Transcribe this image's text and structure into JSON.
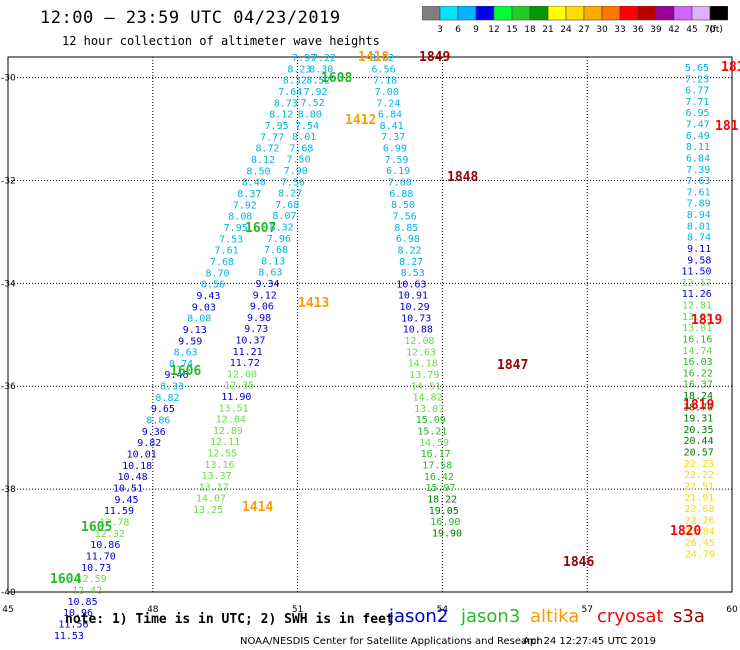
{
  "title": "12:00 – 23:59 UTC 04/23/2019",
  "subtitle": "12 hour collection of altimeter wave heights",
  "colorbar": {
    "labels": [
      "3",
      "6",
      "9",
      "12",
      "15",
      "18",
      "21",
      "24",
      "27",
      "30",
      "33",
      "36",
      "39",
      "42",
      "45",
      "70",
      "(ft)"
    ],
    "colors": [
      "#808080",
      "#00e5ff",
      "#00b4ff",
      "#0000ff",
      "#00ff33",
      "#22cc22",
      "#009900",
      "#ffff00",
      "#ffdd00",
      "#ffaa00",
      "#ff7700",
      "#ff0000",
      "#bb0000",
      "#990099",
      "#cc66ff",
      "#e0b0ff",
      "#000000"
    ]
  },
  "map": {
    "lon_range": [
      45,
      60
    ],
    "lat_range": [
      -40,
      -29.6
    ],
    "lon_ticks": [
      "45",
      "48",
      "51",
      "54",
      "57",
      "60"
    ],
    "lat_ticks": [
      "-30",
      "-32",
      "-34",
      "-36",
      "-38",
      "-40"
    ]
  },
  "tracks": [
    {
      "name": "A",
      "x0": 61,
      "y0": 57,
      "dx": -4.55,
      "dy": 11.33,
      "values": [
        "7.97",
        "8.23",
        "8.32",
        "7.64",
        "8.73",
        "8.12",
        "7.95",
        "7.77",
        "8.72",
        "8.12",
        "8.50",
        "8.40",
        "8.37",
        "7.92",
        "8.08",
        "7.95",
        "7.53",
        "7.61",
        "7.68",
        "8.70",
        "8.56",
        "9.43",
        "9.03",
        "8.08",
        "9.13",
        "9.59",
        "8.63",
        "8.74",
        "9.46",
        "8.33",
        "8.82",
        "9.65",
        "8.86",
        "9.36",
        "9.82",
        "10.01",
        "10.18",
        "10.48",
        "10.51",
        "9.45",
        "11.59",
        "12.78",
        "12.32",
        "10.86",
        "11.70",
        "10.73",
        "12.59",
        "12.42",
        "10.85",
        "10.96",
        "11.56",
        "11.53"
      ]
    },
    {
      "name": "B",
      "x0": 65,
      "y0": 57,
      "dx": -2.82,
      "dy": 11.3,
      "values": [
        "7.22",
        "8.30",
        "8.52",
        "7.92",
        "7.52",
        "8.00",
        "7.54",
        "8.01",
        "7.68",
        "7.50",
        "7.90",
        "7.56",
        "8.27",
        "7.68",
        "8.07",
        "8.32",
        "7.96",
        "7.68",
        "8.13",
        "8.63",
        "9.34",
        "9.12",
        "9.06",
        "9.98",
        "9.73",
        "10.37",
        "11.21",
        "11.72",
        "12.08",
        "12.35",
        "11.90",
        "13.51",
        "12.84",
        "12.89",
        "12.11",
        "12.55",
        "13.16",
        "13.37",
        "13.17",
        "14.07",
        "13.25"
      ]
    },
    {
      "name": "C",
      "x0": 65,
      "y0": 57,
      "dx": 1.62,
      "dy": 11.32,
      "values": [
        "8.92",
        "6.56",
        "7.18",
        "7.00",
        "7.24",
        "6.84",
        "8.41",
        "7.37",
        "6.99",
        "7.59",
        "6.19",
        "7.60",
        "6.88",
        "8.50",
        "7.56",
        "8.85",
        "6.98",
        "8.22",
        "8.27",
        "8.53",
        "10.63",
        "10.91",
        "10.29",
        "10.73",
        "10.88",
        "12.08",
        "12.63",
        "14.18",
        "13.79",
        "14.51",
        "14.82",
        "13.07",
        "15.09",
        "15.21",
        "14.59",
        "16.17",
        "17.58",
        "16.42",
        "15.97",
        "18.22",
        "19.05",
        "16.90",
        "19.90"
      ]
    },
    {
      "name": "D",
      "x0": 61,
      "y0": 67,
      "dx": 0.14,
      "dy": 11.31,
      "values": [
        "5.65",
        "7.23",
        "6.77",
        "7.71",
        "6.95",
        "7.47",
        "6.49",
        "8.11",
        "6.84",
        "7.39",
        "7.63",
        "7.61",
        "7.89",
        "8.94",
        "8.01",
        "8.74",
        "9.11",
        "9.58",
        "11.50",
        "12.17",
        "11.26",
        "12.81",
        "13.99",
        "13.01",
        "16.16",
        "14.74",
        "16.03",
        "16.22",
        "16.37",
        "18.24",
        "18.70",
        "19.31",
        "20.35",
        "20.44",
        "20.57",
        "22.23",
        "22.22",
        "22.51",
        "21.91",
        "22.68",
        "22.26",
        "23.84",
        "26.45",
        "24.79"
      ]
    }
  ],
  "passes": [
    {
      "id": "1849",
      "sat": "s3a"
    },
    {
      "id": "1412",
      "sat": "altika"
    },
    {
      "id": "1413",
      "sat": "altika"
    },
    {
      "id": "1414",
      "sat": "altika"
    },
    {
      "id": "1418",
      "sat": "altika"
    },
    {
      "id": "1608",
      "sat": "jason3"
    },
    {
      "id": "1607",
      "sat": "jason3"
    },
    {
      "id": "1606",
      "sat": "jason3"
    },
    {
      "id": "1605",
      "sat": "jason3"
    },
    {
      "id": "1604",
      "sat": "jason3"
    },
    {
      "id": "1848",
      "sat": "s3a"
    },
    {
      "id": "1847",
      "sat": "s3a"
    },
    {
      "id": "1846",
      "sat": "s3a"
    },
    {
      "id": "1819",
      "sat": "cryosat"
    },
    {
      "id": "1819",
      "sat": "cryosat"
    },
    {
      "id": "1820",
      "sat": "cryosat"
    },
    {
      "id": "181",
      "sat": "cryosat"
    },
    {
      "id": "181",
      "sat": "cryosat"
    }
  ],
  "note": "note:  1) Time is in UTC;  2) SWH is in feet",
  "legend": [
    {
      "label": "jason2",
      "color": "#0000cc"
    },
    {
      "label": "jason3",
      "color": "#22bb22"
    },
    {
      "label": "altika",
      "color": "#ff9900"
    },
    {
      "label": "cryosat",
      "color": "#ff0000"
    },
    {
      "label": "s3a",
      "color": "#990000"
    }
  ],
  "credit": "NOAA/NESDIS Center for Satellite Applications and Research",
  "timestamp": "Apr 24 12:27:45 UTC 2019",
  "colors": {
    "jason2": "#0000cc",
    "jason3": "#22bb22",
    "altika": "#ff9900",
    "cryosat": "#ff0000",
    "s3a": "#990000",
    "cyan": "#00b4e6",
    "yellow": "#ffd700"
  }
}
